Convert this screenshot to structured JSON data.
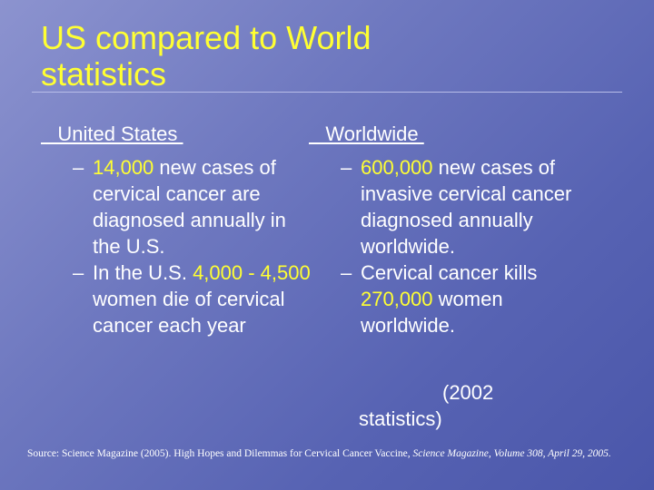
{
  "slide": {
    "title_line1": "US compared to World",
    "title_line2": "statistics"
  },
  "left": {
    "heading": "   United States ",
    "bullet1_dash": "–",
    "bullet1_hl": "14,000",
    "bullet1_rest": " new cases of cervical cancer are diagnosed annually in the U.S.",
    "bullet2_dash": "–",
    "bullet2_pre": "In the U.S. ",
    "bullet2_hl": "4,000 - 4,500",
    "bullet2_rest": " women die of cervical cancer each year"
  },
  "right": {
    "heading": "   Worldwide ",
    "bullet1_dash": "–",
    "bullet1_hl": "600,000",
    "bullet1_rest": " new cases of invasive cervical cancer diagnosed annually worldwide.",
    "bullet2_dash": "–",
    "bullet2_pre": "Cervical cancer kills ",
    "bullet2_hl": "270,000",
    "bullet2_rest": " women worldwide."
  },
  "note": {
    "line1": "(2002",
    "line2": "statistics)"
  },
  "source": {
    "prefix": "Source:  Science Magazine (2005).  High Hopes and Dilemmas for Cervical Cancer Vaccine, ",
    "italic": "Science Magazine, Volume 308, April 29, 2005."
  },
  "colors": {
    "title": "#ffff33",
    "highlight": "#ffff33",
    "text": "#ffffff",
    "background": "#6f79c0"
  }
}
